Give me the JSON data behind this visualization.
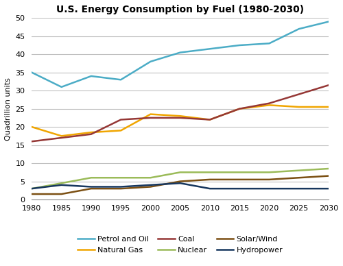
{
  "title": "U.S. Energy Consumption by Fuel (1980-2030)",
  "ylabel": "Quadrillion units",
  "years": [
    1980,
    1985,
    1990,
    1995,
    2000,
    2005,
    2010,
    2015,
    2020,
    2025,
    2030
  ],
  "series": {
    "Petrol and Oil": {
      "color": "#4bacc6",
      "values": [
        35.0,
        31.0,
        34.0,
        33.0,
        38.0,
        40.5,
        41.5,
        42.5,
        43.0,
        47.0,
        49.0
      ]
    },
    "Natural Gas": {
      "color": "#f0a500",
      "values": [
        20.0,
        17.5,
        18.5,
        19.0,
        23.5,
        23.0,
        22.0,
        25.0,
        26.0,
        25.5,
        25.5
      ]
    },
    "Coal": {
      "color": "#953735",
      "values": [
        16.0,
        17.0,
        18.0,
        22.0,
        22.5,
        22.5,
        22.0,
        25.0,
        26.5,
        29.0,
        31.5
      ]
    },
    "Nuclear": {
      "color": "#9bbb59",
      "values": [
        3.0,
        4.5,
        6.0,
        6.0,
        6.0,
        7.5,
        7.5,
        7.5,
        7.5,
        8.0,
        8.5
      ]
    },
    "Solar/Wind": {
      "color": "#7b4f12",
      "values": [
        1.5,
        1.5,
        3.0,
        3.0,
        3.5,
        5.0,
        5.5,
        5.5,
        5.5,
        6.0,
        6.5
      ]
    },
    "Hydropower": {
      "color": "#17375e",
      "values": [
        3.0,
        4.0,
        3.5,
        3.5,
        4.0,
        4.5,
        3.0,
        3.0,
        3.0,
        3.0,
        3.0
      ]
    }
  },
  "legend_order": [
    "Petrol and Oil",
    "Natural Gas",
    "Coal",
    "Nuclear",
    "Solar/Wind",
    "Hydropower"
  ],
  "ylim": [
    0,
    50
  ],
  "yticks": [
    0,
    5,
    10,
    15,
    20,
    25,
    30,
    35,
    40,
    45,
    50
  ],
  "background_color": "#ffffff",
  "grid_color": "#c0c0c0",
  "title_fontsize": 10,
  "label_fontsize": 8,
  "tick_fontsize": 8,
  "legend_fontsize": 8
}
